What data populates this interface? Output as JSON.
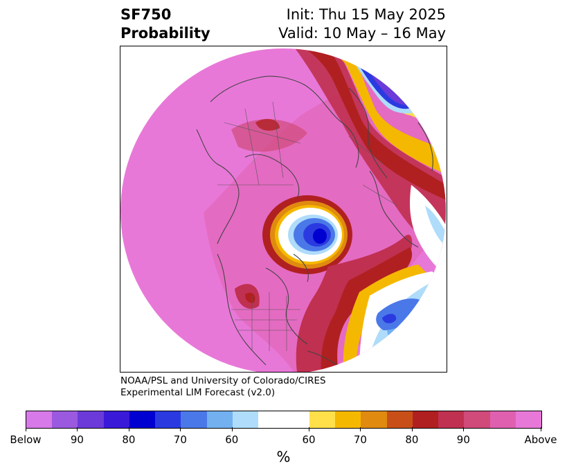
{
  "title": {
    "variable": "SF750",
    "product": "Probability",
    "init": "Init: Thu 15 May 2025",
    "valid": "Valid: 10 May – 16 May"
  },
  "credit": {
    "line1": "NOAA/PSL and University of Colorado/CIRES",
    "line2": "Experimental LIM Forecast (v2.0)"
  },
  "colorbar": {
    "label": "%",
    "colors": [
      "#d779e8",
      "#9b59e0",
      "#6b3ad8",
      "#3a1ad8",
      "#0000d0",
      "#2a3ae0",
      "#4a78e8",
      "#72b0f0",
      "#aedcfa",
      "#ffffff",
      "#ffe04a",
      "#f5b800",
      "#e08a10",
      "#c85018",
      "#b02020",
      "#c03050",
      "#d04a7a",
      "#e060b0",
      "#e878d8"
    ],
    "tick_labels": [
      "Below",
      "90",
      "80",
      "70",
      "60",
      "60",
      "70",
      "80",
      "90",
      "Above"
    ]
  }
}
